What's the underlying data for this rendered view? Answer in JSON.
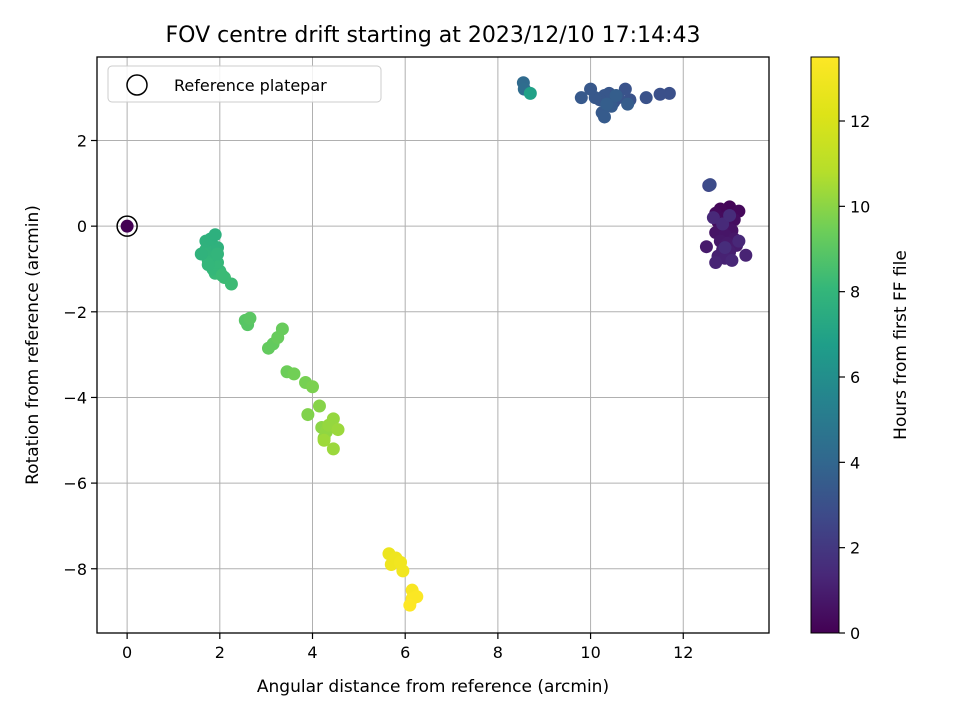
{
  "chart_data": {
    "type": "scatter",
    "title": "FOV centre drift starting at 2023/12/10 17:14:43",
    "xlabel": "Angular distance from reference (arcmin)",
    "ylabel": "Rotation from reference (arcmin)",
    "xlim": [
      -0.65,
      13.85
    ],
    "ylim": [
      -9.5,
      3.95
    ],
    "x_ticks": [
      0,
      2,
      4,
      6,
      8,
      10,
      12
    ],
    "y_ticks": [
      -8,
      -6,
      -4,
      -2,
      0,
      2
    ],
    "x_tick_labels": [
      "0",
      "2",
      "4",
      "6",
      "8",
      "10",
      "12"
    ],
    "y_tick_labels": [
      "−8",
      "−6",
      "−4",
      "−2",
      "0",
      "2"
    ],
    "grid": true,
    "legend": {
      "placement": "top-left",
      "entries": [
        {
          "label": "Reference platepar",
          "marker": "open-circle",
          "x": 0,
          "y": 0
        }
      ]
    },
    "colorbar": {
      "label": "Hours from first FF file",
      "colormap": "viridis",
      "range": [
        0,
        13.5
      ],
      "ticks": [
        0,
        2,
        4,
        6,
        8,
        10,
        12
      ],
      "tick_labels": [
        "0",
        "2",
        "4",
        "6",
        "8",
        "10",
        "12"
      ]
    },
    "series": [
      {
        "points": [
          [
            0.0,
            0.0,
            0.0
          ],
          [
            12.9,
            0.35,
            0.1
          ],
          [
            13.0,
            0.45,
            0.15
          ],
          [
            12.8,
            0.4,
            0.2
          ],
          [
            13.2,
            0.35,
            0.25
          ],
          [
            12.7,
            0.3,
            0.3
          ],
          [
            12.9,
            0.2,
            0.35
          ],
          [
            13.1,
            0.15,
            0.4
          ],
          [
            12.75,
            0.1,
            0.45
          ],
          [
            12.95,
            0.0,
            0.5
          ],
          [
            12.8,
            -0.05,
            0.55
          ],
          [
            13.05,
            -0.1,
            0.6
          ],
          [
            12.7,
            -0.15,
            0.65
          ],
          [
            12.9,
            -0.2,
            0.7
          ],
          [
            13.1,
            -0.3,
            0.75
          ],
          [
            12.8,
            -0.35,
            0.8
          ],
          [
            12.95,
            -0.4,
            0.85
          ],
          [
            12.5,
            -0.48,
            0.9
          ],
          [
            13.15,
            -0.45,
            0.95
          ],
          [
            12.85,
            -0.55,
            1.0
          ],
          [
            13.0,
            -0.6,
            1.05
          ],
          [
            12.75,
            -0.7,
            1.1
          ],
          [
            12.9,
            -0.75,
            1.15
          ],
          [
            13.35,
            -0.68,
            1.2
          ],
          [
            12.7,
            -0.85,
            1.25
          ],
          [
            13.05,
            -0.8,
            1.3
          ],
          [
            13.2,
            -0.35,
            1.35
          ],
          [
            12.65,
            0.2,
            1.4
          ],
          [
            12.85,
            0.05,
            1.45
          ],
          [
            13.0,
            0.25,
            1.5
          ],
          [
            12.9,
            -0.5,
            1.55
          ],
          [
            12.55,
            0.95,
            2.6
          ],
          [
            12.58,
            0.97,
            2.8
          ],
          [
            11.7,
            3.1,
            3.0
          ],
          [
            11.5,
            3.08,
            3.0
          ],
          [
            11.2,
            3.0,
            3.1
          ],
          [
            10.85,
            2.95,
            3.1
          ],
          [
            10.75,
            3.2,
            3.15
          ],
          [
            10.6,
            3.0,
            3.2
          ],
          [
            10.5,
            2.9,
            3.2
          ],
          [
            10.4,
            3.1,
            3.25
          ],
          [
            10.3,
            3.05,
            3.3
          ],
          [
            10.2,
            2.95,
            3.3
          ],
          [
            10.1,
            3.0,
            3.35
          ],
          [
            10.0,
            3.2,
            3.35
          ],
          [
            9.8,
            3.0,
            3.4
          ],
          [
            10.25,
            2.65,
            3.45
          ],
          [
            10.3,
            2.55,
            3.5
          ],
          [
            10.45,
            2.8,
            3.5
          ],
          [
            10.8,
            2.85,
            3.55
          ],
          [
            10.55,
            3.05,
            3.6
          ],
          [
            10.35,
            2.85,
            3.6
          ],
          [
            8.55,
            3.35,
            4.2
          ],
          [
            8.57,
            3.2,
            4.3
          ],
          [
            8.7,
            3.1,
            6.9
          ],
          [
            2.25,
            -1.35,
            8.3
          ],
          [
            2.1,
            -1.2,
            8.3
          ],
          [
            2.0,
            -1.05,
            8.2
          ],
          [
            1.9,
            -1.1,
            8.2
          ],
          [
            1.85,
            -1.0,
            8.1
          ],
          [
            1.95,
            -0.85,
            8.1
          ],
          [
            1.75,
            -0.8,
            8.0
          ],
          [
            1.8,
            -0.7,
            8.0
          ],
          [
            1.9,
            -0.6,
            7.9
          ],
          [
            1.7,
            -0.55,
            7.9
          ],
          [
            1.6,
            -0.65,
            7.85
          ],
          [
            1.85,
            -0.45,
            7.85
          ],
          [
            1.95,
            -0.5,
            7.8
          ],
          [
            1.7,
            -0.35,
            7.8
          ],
          [
            1.8,
            -0.3,
            7.75
          ],
          [
            1.9,
            -0.2,
            7.7
          ],
          [
            1.75,
            -0.9,
            8.05
          ],
          [
            2.05,
            -1.15,
            8.25
          ],
          [
            1.95,
            -0.65,
            7.95
          ],
          [
            2.55,
            -2.2,
            8.9
          ],
          [
            2.6,
            -2.3,
            8.9
          ],
          [
            2.65,
            -2.15,
            9.0
          ],
          [
            3.05,
            -2.85,
            9.2
          ],
          [
            3.15,
            -2.75,
            9.2
          ],
          [
            3.25,
            -2.6,
            9.3
          ],
          [
            3.35,
            -2.4,
            9.3
          ],
          [
            3.45,
            -3.4,
            9.4
          ],
          [
            3.6,
            -3.45,
            9.5
          ],
          [
            3.85,
            -3.65,
            9.6
          ],
          [
            4.0,
            -3.75,
            9.7
          ],
          [
            3.9,
            -4.4,
            9.8
          ],
          [
            4.15,
            -4.2,
            9.9
          ],
          [
            4.2,
            -4.7,
            10.0
          ],
          [
            4.3,
            -4.8,
            10.1
          ],
          [
            4.25,
            -4.95,
            10.1
          ],
          [
            4.45,
            -4.5,
            10.2
          ],
          [
            4.35,
            -4.65,
            10.2
          ],
          [
            4.55,
            -4.75,
            10.3
          ],
          [
            4.45,
            -5.2,
            10.3
          ],
          [
            4.25,
            -5.0,
            10.35
          ],
          [
            5.65,
            -7.65,
            12.8
          ],
          [
            5.7,
            -7.9,
            12.9
          ],
          [
            5.8,
            -7.75,
            12.9
          ],
          [
            5.9,
            -7.85,
            13.0
          ],
          [
            5.95,
            -8.05,
            13.0
          ],
          [
            6.15,
            -8.5,
            13.3
          ],
          [
            6.25,
            -8.65,
            13.4
          ],
          [
            6.15,
            -8.7,
            13.4
          ],
          [
            6.1,
            -8.85,
            13.5
          ]
        ]
      }
    ]
  }
}
